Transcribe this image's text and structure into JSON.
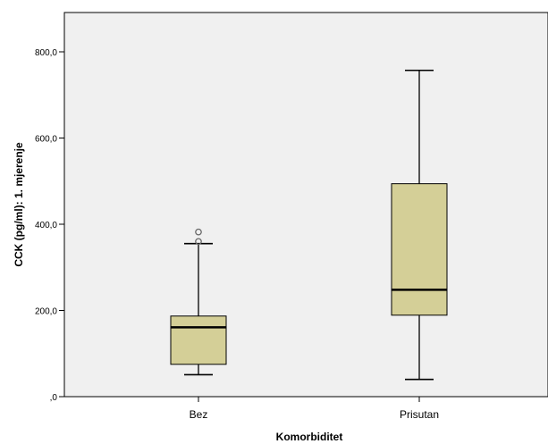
{
  "chart_data": {
    "type": "box",
    "xlabel": "Komorbiditet",
    "ylabel": "CCK (pg/ml): 1. mjerenje",
    "ylim": [
      0,
      880
    ],
    "yticks": [
      {
        "value": 0,
        "label": ",0"
      },
      {
        "value": 200,
        "label": "200,0"
      },
      {
        "value": 400,
        "label": "400,0"
      },
      {
        "value": 600,
        "label": "600,0"
      },
      {
        "value": 800,
        "label": "800,0"
      }
    ],
    "categories": [
      "Bez",
      "Prisutan"
    ],
    "boxes": [
      {
        "category": "Bez",
        "whisker_low": 51,
        "q1": 75,
        "median": 161,
        "q3": 187,
        "whisker_high": 355,
        "outliers": [
          360,
          382
        ]
      },
      {
        "category": "Prisutan",
        "whisker_low": 40,
        "q1": 189,
        "median": 248,
        "q3": 494,
        "whisker_high": 757,
        "outliers": []
      }
    ],
    "grid": false,
    "colors": {
      "box_fill": "#d4cf97",
      "box_stroke": "#000000",
      "plot_background": "#f0f0f0",
      "outlier_stroke": "#666666"
    }
  }
}
